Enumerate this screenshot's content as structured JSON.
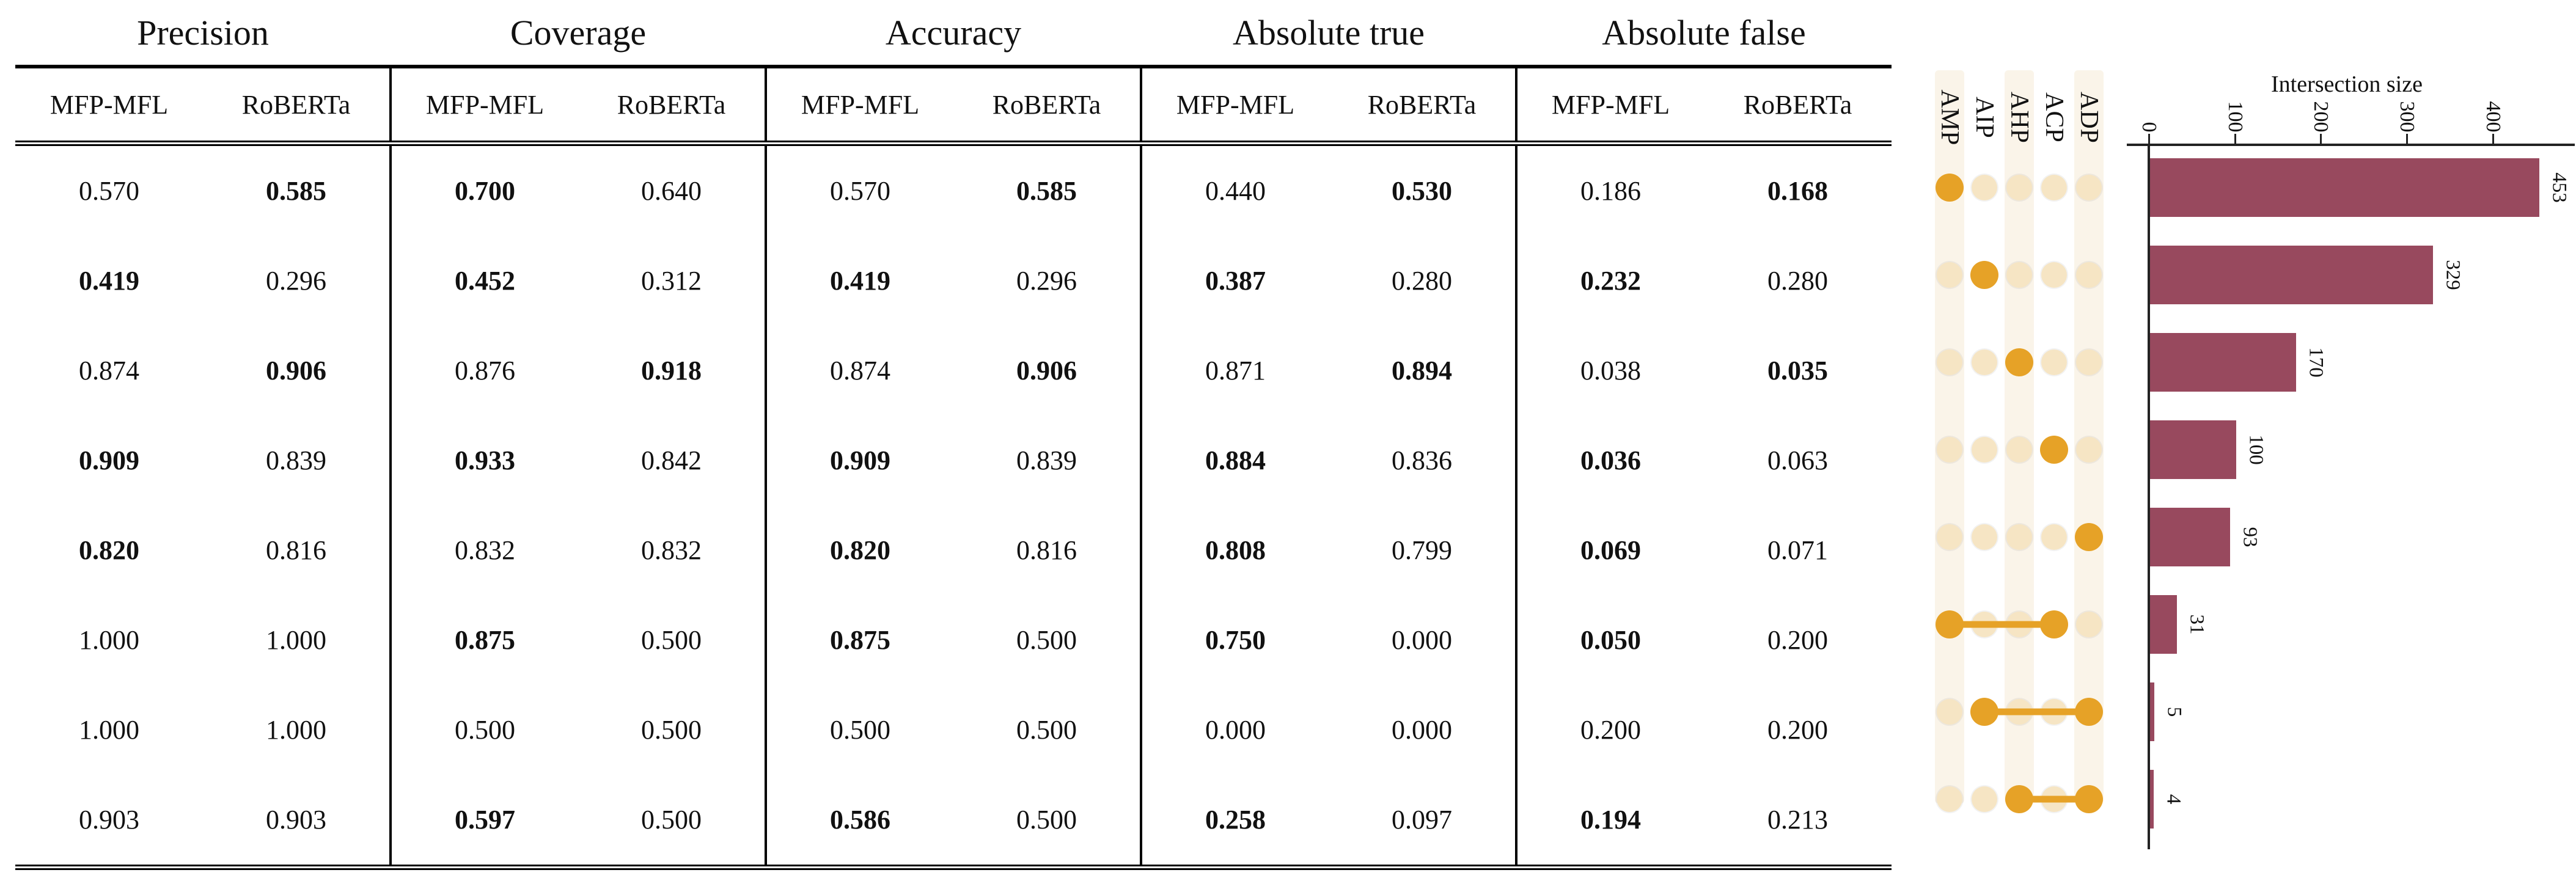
{
  "table": {
    "groups": [
      "Precision",
      "Coverage",
      "Accuracy",
      "Absolute true",
      "Absolute false"
    ],
    "sub_headers": [
      "MFP-MFL",
      "RoBERTa"
    ],
    "rows": [
      {
        "values": [
          "0.570",
          "0.585",
          "0.700",
          "0.640",
          "0.570",
          "0.585",
          "0.440",
          "0.530",
          "0.186",
          "0.168"
        ],
        "bold": [
          0,
          1,
          1,
          0,
          0,
          1,
          0,
          1,
          0,
          1
        ]
      },
      {
        "values": [
          "0.419",
          "0.296",
          "0.452",
          "0.312",
          "0.419",
          "0.296",
          "0.387",
          "0.280",
          "0.232",
          "0.280"
        ],
        "bold": [
          1,
          0,
          1,
          0,
          1,
          0,
          1,
          0,
          1,
          0
        ]
      },
      {
        "values": [
          "0.874",
          "0.906",
          "0.876",
          "0.918",
          "0.874",
          "0.906",
          "0.871",
          "0.894",
          "0.038",
          "0.035"
        ],
        "bold": [
          0,
          1,
          0,
          1,
          0,
          1,
          0,
          1,
          0,
          1
        ]
      },
      {
        "values": [
          "0.909",
          "0.839",
          "0.933",
          "0.842",
          "0.909",
          "0.839",
          "0.884",
          "0.836",
          "0.036",
          "0.063"
        ],
        "bold": [
          1,
          0,
          1,
          0,
          1,
          0,
          1,
          0,
          1,
          0
        ]
      },
      {
        "values": [
          "0.820",
          "0.816",
          "0.832",
          "0.832",
          "0.820",
          "0.816",
          "0.808",
          "0.799",
          "0.069",
          "0.071"
        ],
        "bold": [
          1,
          0,
          0,
          0,
          1,
          0,
          1,
          0,
          1,
          0
        ]
      },
      {
        "values": [
          "1.000",
          "1.000",
          "0.875",
          "0.500",
          "0.875",
          "0.500",
          "0.750",
          "0.000",
          "0.050",
          "0.200"
        ],
        "bold": [
          0,
          0,
          1,
          0,
          1,
          0,
          1,
          0,
          1,
          0
        ]
      },
      {
        "values": [
          "1.000",
          "1.000",
          "0.500",
          "0.500",
          "0.500",
          "0.500",
          "0.000",
          "0.000",
          "0.200",
          "0.200"
        ],
        "bold": [
          0,
          0,
          0,
          0,
          0,
          0,
          0,
          0,
          0,
          0
        ]
      },
      {
        "values": [
          "0.903",
          "0.903",
          "0.597",
          "0.500",
          "0.586",
          "0.500",
          "0.258",
          "0.097",
          "0.194",
          "0.213"
        ],
        "bold": [
          0,
          0,
          1,
          0,
          1,
          0,
          1,
          0,
          1,
          0
        ]
      }
    ]
  },
  "chart_data": {
    "type": "bar",
    "subtype": "upset",
    "orientation": "horizontal",
    "xlabel": "Intersection size",
    "sets": [
      "AMP",
      "AIP",
      "AHP",
      "ACP",
      "ADP"
    ],
    "x_ticks": [
      0,
      100,
      200,
      300,
      400
    ],
    "xlim": [
      0,
      460
    ],
    "grid": false,
    "intersections": [
      {
        "sets": [
          "AMP"
        ],
        "size": 453
      },
      {
        "sets": [
          "AIP"
        ],
        "size": 329
      },
      {
        "sets": [
          "AHP"
        ],
        "size": 170
      },
      {
        "sets": [
          "ACP"
        ],
        "size": 100
      },
      {
        "sets": [
          "ADP"
        ],
        "size": 93
      },
      {
        "sets": [
          "AMP",
          "ACP"
        ],
        "size": 31
      },
      {
        "sets": [
          "AIP",
          "ADP"
        ],
        "size": 5
      },
      {
        "sets": [
          "AHP",
          "ADP"
        ],
        "size": 4
      }
    ],
    "colors": {
      "bar": "#98495e",
      "dot_active": "#e6a227",
      "dot_inactive": "#f6e5c4",
      "stripe": "#faf4e9"
    }
  }
}
